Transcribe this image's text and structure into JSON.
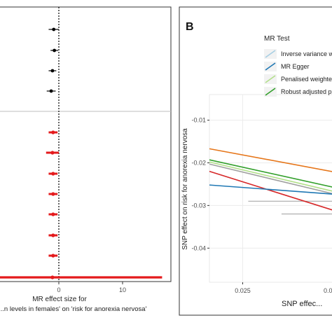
{
  "chart_data": [
    {
      "type": "scatter",
      "xlabel_lines": [
        "MR effect size for",
        "...n levels in females' on 'risk for anorexia nervosa'"
      ],
      "x_ticks": [
        "0",
        "10"
      ],
      "xlim": [
        -10,
        17
      ],
      "reference_line_x": 0,
      "groups": [
        {
          "color": "#000000",
          "points": [
            {
              "est": -0.8,
              "lo": -1.6,
              "hi": 0.0
            },
            {
              "est": -0.7,
              "lo": -1.3,
              "hi": -0.1
            },
            {
              "est": -1.0,
              "lo": -1.6,
              "hi": -0.4
            },
            {
              "est": -1.2,
              "lo": -1.9,
              "hi": -0.5
            }
          ]
        },
        {
          "color": "#e41a1c",
          "points": [
            {
              "est": -0.9,
              "lo": -1.6,
              "hi": -0.2
            },
            {
              "est": -1.0,
              "lo": -2.0,
              "hi": 0.0
            },
            {
              "est": -0.9,
              "lo": -1.6,
              "hi": -0.2
            },
            {
              "est": -0.9,
              "lo": -1.6,
              "hi": -0.2
            },
            {
              "est": -0.9,
              "lo": -1.6,
              "hi": -0.2
            },
            {
              "est": -0.9,
              "lo": -1.6,
              "hi": -0.2
            },
            {
              "est": -0.9,
              "lo": -1.6,
              "hi": -0.2
            },
            {
              "est": -1.0,
              "lo": -10.5,
              "hi": 16.2
            }
          ]
        }
      ]
    },
    {
      "type": "line",
      "panel_label": "B",
      "xlabel": "SNP effec...",
      "ylabel": "SNP effect on risk for anorexia nervosa",
      "xlim": [
        0.016,
        0.052
      ],
      "ylim": [
        -0.048,
        -0.004
      ],
      "x_ticks": [
        0.025
      ],
      "x_tick_labels": [
        "0.025",
        "0.0..."
      ],
      "y_ticks": [
        -0.01,
        -0.02,
        -0.03,
        -0.04
      ],
      "y_tick_labels": [
        "-0.01",
        "-0.02",
        "-0.03",
        "-0.04"
      ],
      "legend": {
        "title": "MR Test",
        "entries": [
          {
            "label": "Inverse variance w...",
            "color": "#a6cee3"
          },
          {
            "label": "MR Egger",
            "color": "#1f78b4"
          },
          {
            "label": "Penalised weighte...",
            "color": "#b2df8a"
          },
          {
            "label": "Robust adjusted p...",
            "color": "#33a02c"
          }
        ]
      },
      "series": [
        {
          "color": "#e6761a",
          "points": [
            [
              0.016,
              -0.0167
            ],
            [
              0.052,
              -0.0225
            ]
          ]
        },
        {
          "color": "#33a02c",
          "points": [
            [
              0.016,
              -0.0193
            ],
            [
              0.052,
              -0.0262
            ]
          ]
        },
        {
          "color": "#b2df8a",
          "points": [
            [
              0.016,
              -0.0198
            ],
            [
              0.052,
              -0.0272
            ]
          ]
        },
        {
          "color": "#a0a0a0",
          "points": [
            [
              0.016,
              -0.0203
            ],
            [
              0.052,
              -0.0278
            ]
          ]
        },
        {
          "color": "#d62728",
          "points": [
            [
              0.016,
              -0.022
            ],
            [
              0.052,
              -0.0318
            ]
          ]
        },
        {
          "color": "#1f78b4",
          "points": [
            [
              0.016,
              -0.0252
            ],
            [
              0.052,
              -0.0275
            ]
          ]
        }
      ],
      "error_segments": [
        {
          "y": -0.029,
          "x0": 0.0265,
          "x1": 0.052
        },
        {
          "y": -0.032,
          "x0": 0.0355,
          "x1": 0.052
        }
      ]
    }
  ]
}
